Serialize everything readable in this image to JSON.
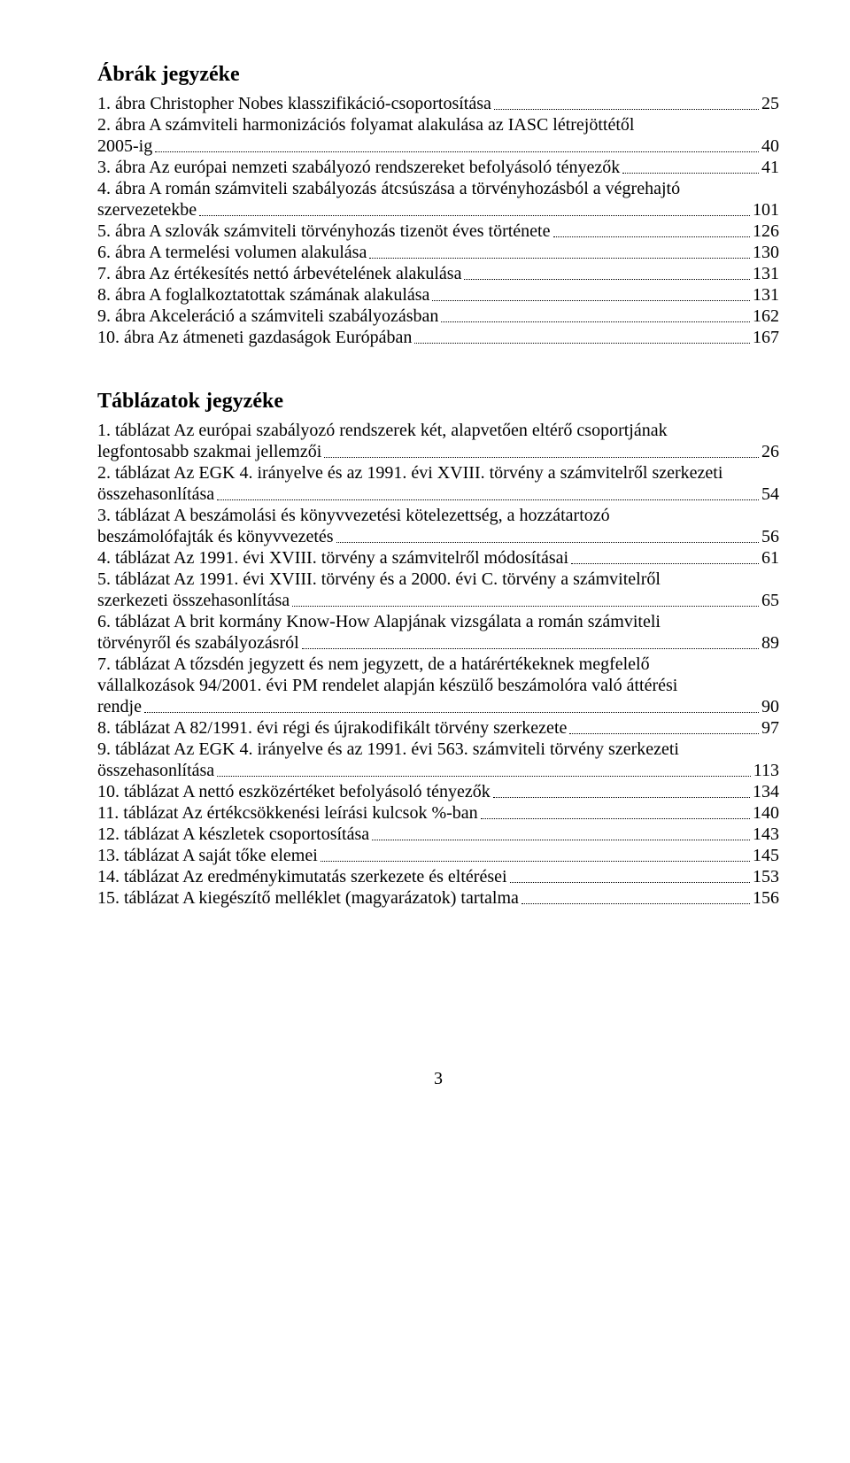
{
  "figures": {
    "heading": "Ábrák jegyzéke",
    "items": [
      {
        "lines": [
          "1. ábra Christopher Nobes klasszifikáció-csoportosítása"
        ],
        "page": "25"
      },
      {
        "lines": [
          "2. ábra A számviteli harmonizációs folyamat alakulása az IASC létrejöttétől",
          "2005-ig"
        ],
        "page": "40"
      },
      {
        "lines": [
          "3. ábra Az európai nemzeti szabályozó rendszereket befolyásoló tényezők"
        ],
        "page": "41"
      },
      {
        "lines": [
          "4. ábra A román számviteli szabályozás átcsúszása a törvényhozásból a végrehajtó",
          "szervezetekbe"
        ],
        "page": "101"
      },
      {
        "lines": [
          "5. ábra A szlovák számviteli törvényhozás tizenöt éves története"
        ],
        "page": "126"
      },
      {
        "lines": [
          "6. ábra A termelési volumen alakulása"
        ],
        "page": "130"
      },
      {
        "lines": [
          "7. ábra Az értékesítés nettó árbevételének alakulása"
        ],
        "page": "131"
      },
      {
        "lines": [
          "8. ábra A foglalkoztatottak számának alakulása"
        ],
        "page": "131"
      },
      {
        "lines": [
          "9. ábra Akceleráció a számviteli szabályozásban"
        ],
        "page": "162"
      },
      {
        "lines": [
          "10. ábra Az átmeneti gazdaságok Európában"
        ],
        "page": "167"
      }
    ]
  },
  "tables": {
    "heading": "Táblázatok jegyzéke",
    "items": [
      {
        "lines": [
          "1. táblázat Az európai szabályozó rendszerek két, alapvetően eltérő csoportjának",
          "legfontosabb szakmai jellemzői"
        ],
        "page": "26"
      },
      {
        "lines": [
          "2. táblázat Az EGK 4. irányelve és az 1991. évi XVIII. törvény a számvitelről szerkezeti",
          "összehasonlítása"
        ],
        "page": "54"
      },
      {
        "lines": [
          "3. táblázat A beszámolási és könyvvezetési kötelezettség, a hozzátartozó",
          "beszámolófajták és könyvvezetés"
        ],
        "page": "56"
      },
      {
        "lines": [
          "4. táblázat Az 1991. évi XVIII. törvény a számvitelről módosításai"
        ],
        "page": "61"
      },
      {
        "lines": [
          "5. táblázat Az 1991. évi XVIII. törvény és a 2000. évi C. törvény a számvitelről",
          "szerkezeti összehasonlítása"
        ],
        "page": "65"
      },
      {
        "lines": [
          "6. táblázat A brit kormány Know-How Alapjának vizsgálata a román számviteli",
          "törvényről és szabályozásról"
        ],
        "page": "89"
      },
      {
        "lines": [
          "7. táblázat A tőzsdén jegyzett és nem jegyzett, de a határértékeknek megfelelő",
          "vállalkozások 94/2001. évi PM rendelet alapján készülő beszámolóra való áttérési",
          "rendje"
        ],
        "page": "90"
      },
      {
        "lines": [
          "8. táblázat A 82/1991. évi régi és újrakodifikált törvény szerkezete"
        ],
        "page": "97"
      },
      {
        "lines": [
          "9. táblázat Az EGK 4. irányelve és az 1991. évi 563. számviteli törvény szerkezeti",
          "összehasonlítása"
        ],
        "page": "113"
      },
      {
        "lines": [
          "10. táblázat A nettó eszközértéket befolyásoló tényezők"
        ],
        "page": "134"
      },
      {
        "lines": [
          "11. táblázat Az értékcsökkenési leírási kulcsok %-ban"
        ],
        "page": "140"
      },
      {
        "lines": [
          "12. táblázat A készletek csoportosítása"
        ],
        "page": "143"
      },
      {
        "lines": [
          "13. táblázat A saját tőke elemei"
        ],
        "page": "145"
      },
      {
        "lines": [
          "14. táblázat Az eredménykimutatás szerkezete és eltérései"
        ],
        "page": "153"
      },
      {
        "lines": [
          "15. táblázat A kiegészítő melléklet (magyarázatok) tartalma"
        ],
        "page": "156"
      }
    ]
  },
  "pageNumber": "3"
}
